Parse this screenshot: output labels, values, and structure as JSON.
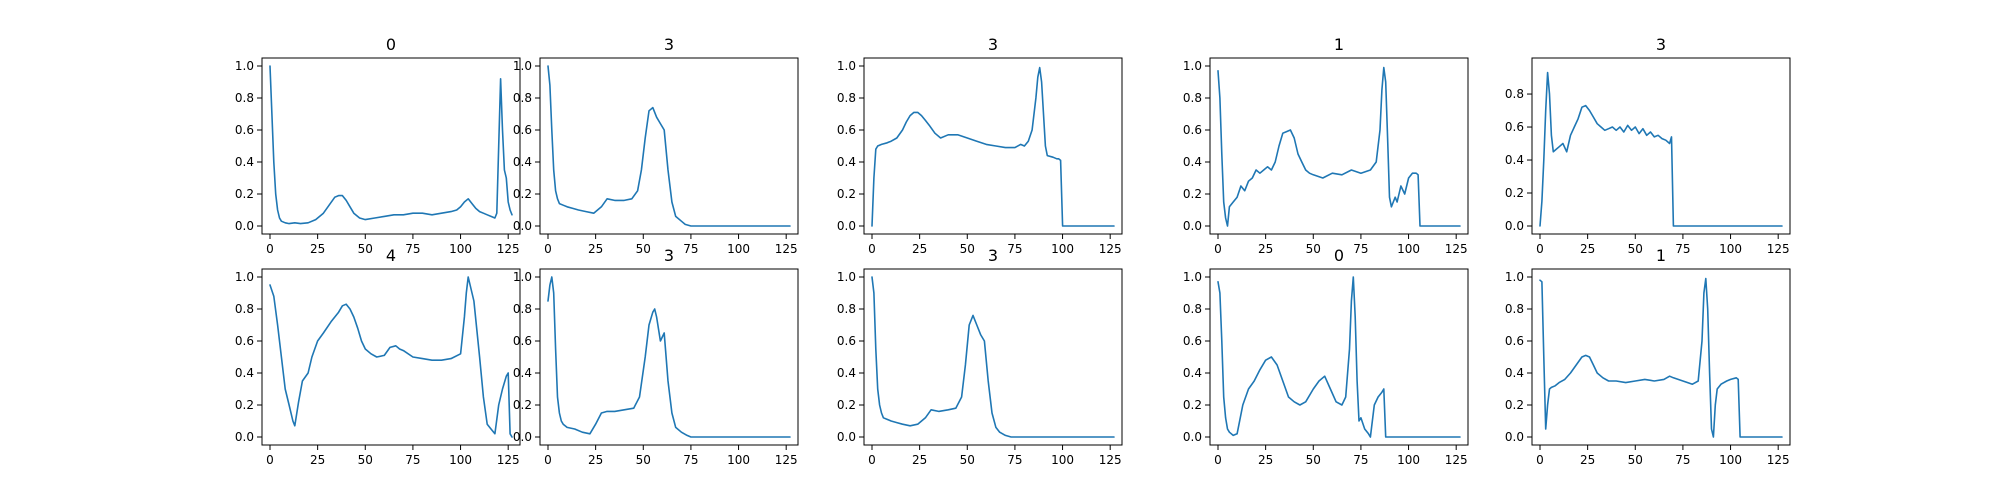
{
  "line_color": "#1f77b4",
  "chart_data": [
    {
      "type": "line",
      "title": "0",
      "xlim": [
        0,
        127
      ],
      "ylim": [
        0,
        1
      ],
      "xticks": [
        0,
        25,
        50,
        75,
        100,
        125
      ],
      "yticks": [
        "0.0",
        "0.2",
        "0.4",
        "0.6",
        "0.8",
        "1.0"
      ],
      "x": [
        0,
        1,
        2,
        3,
        4,
        5,
        6,
        8,
        10,
        13,
        16,
        20,
        24,
        28,
        31,
        34,
        36,
        38,
        40,
        42,
        44,
        47,
        50,
        55,
        60,
        65,
        70,
        75,
        80,
        85,
        90,
        95,
        98,
        100,
        102,
        104,
        106,
        108,
        110,
        112,
        114,
        116,
        118,
        119,
        120,
        121,
        122,
        123,
        124,
        125,
        126,
        127
      ],
      "y": [
        1.0,
        0.7,
        0.4,
        0.2,
        0.1,
        0.05,
        0.03,
        0.02,
        0.015,
        0.02,
        0.015,
        0.02,
        0.04,
        0.08,
        0.13,
        0.18,
        0.19,
        0.19,
        0.16,
        0.12,
        0.08,
        0.05,
        0.04,
        0.05,
        0.06,
        0.07,
        0.07,
        0.08,
        0.08,
        0.07,
        0.08,
        0.09,
        0.1,
        0.12,
        0.15,
        0.17,
        0.14,
        0.11,
        0.09,
        0.08,
        0.07,
        0.06,
        0.05,
        0.08,
        0.5,
        0.92,
        0.6,
        0.35,
        0.3,
        0.15,
        0.1,
        0.07
      ]
    },
    {
      "type": "line",
      "title": "3",
      "xlim": [
        0,
        127
      ],
      "ylim": [
        0,
        1
      ],
      "xticks": [
        0,
        25,
        50,
        75,
        100,
        125
      ],
      "yticks": [
        "0.0",
        "0.2",
        "0.4",
        "0.6",
        "0.8",
        "1.0"
      ],
      "x": [
        0,
        1,
        2,
        3,
        4,
        5,
        6,
        8,
        10,
        13,
        16,
        20,
        24,
        28,
        31,
        35,
        40,
        44,
        47,
        49,
        51,
        53,
        55,
        57,
        59,
        61,
        63,
        65,
        67,
        70,
        72,
        75,
        80,
        90,
        100,
        110,
        120,
        127
      ],
      "y": [
        1.0,
        0.88,
        0.6,
        0.35,
        0.22,
        0.17,
        0.14,
        0.13,
        0.12,
        0.11,
        0.1,
        0.09,
        0.08,
        0.12,
        0.17,
        0.16,
        0.16,
        0.17,
        0.22,
        0.35,
        0.55,
        0.72,
        0.74,
        0.68,
        0.64,
        0.6,
        0.35,
        0.15,
        0.06,
        0.03,
        0.01,
        0.0,
        0.0,
        0.0,
        0.0,
        0.0,
        0.0,
        0.0
      ]
    },
    {
      "type": "line",
      "title": "3",
      "xlim": [
        0,
        127
      ],
      "ylim": [
        0,
        1
      ],
      "xticks": [
        0,
        25,
        50,
        75,
        100,
        125
      ],
      "yticks": [
        "0.0",
        "0.2",
        "0.4",
        "0.6",
        "0.8",
        "1.0"
      ],
      "x": [
        0,
        1,
        2,
        3,
        5,
        8,
        10,
        13,
        16,
        18,
        20,
        22,
        24,
        26,
        28,
        30,
        33,
        36,
        40,
        45,
        50,
        55,
        60,
        65,
        70,
        75,
        78,
        80,
        82,
        84,
        86,
        87,
        88,
        89,
        90,
        91,
        92,
        95,
        97,
        98,
        99,
        100,
        105,
        110,
        115,
        120,
        127
      ],
      "y": [
        0.0,
        0.3,
        0.48,
        0.5,
        0.51,
        0.52,
        0.53,
        0.55,
        0.6,
        0.65,
        0.69,
        0.71,
        0.71,
        0.69,
        0.66,
        0.63,
        0.58,
        0.55,
        0.57,
        0.57,
        0.55,
        0.53,
        0.51,
        0.5,
        0.49,
        0.49,
        0.51,
        0.5,
        0.53,
        0.6,
        0.8,
        0.93,
        0.99,
        0.9,
        0.7,
        0.5,
        0.44,
        0.43,
        0.42,
        0.42,
        0.41,
        0.0,
        0.0,
        0.0,
        0.0,
        0.0,
        0.0
      ]
    },
    {
      "type": "line",
      "title": "1",
      "xlim": [
        0,
        127
      ],
      "ylim": [
        0,
        1
      ],
      "xticks": [
        0,
        25,
        50,
        75,
        100,
        125
      ],
      "yticks": [
        "0.0",
        "0.2",
        "0.4",
        "0.6",
        "0.8",
        "1.0"
      ],
      "x": [
        0,
        1,
        2,
        3,
        4,
        5,
        6,
        8,
        10,
        12,
        14,
        16,
        18,
        20,
        22,
        24,
        26,
        28,
        30,
        32,
        34,
        36,
        38,
        40,
        42,
        44,
        46,
        48,
        50,
        55,
        60,
        65,
        70,
        75,
        80,
        83,
        85,
        86,
        87,
        88,
        89,
        90,
        91,
        92,
        93,
        94,
        96,
        98,
        100,
        102,
        104,
        105,
        106,
        110,
        115,
        120,
        127
      ],
      "y": [
        0.97,
        0.8,
        0.45,
        0.15,
        0.05,
        0.0,
        0.12,
        0.15,
        0.18,
        0.25,
        0.22,
        0.28,
        0.3,
        0.35,
        0.33,
        0.35,
        0.37,
        0.35,
        0.4,
        0.5,
        0.58,
        0.59,
        0.6,
        0.55,
        0.45,
        0.4,
        0.35,
        0.33,
        0.32,
        0.3,
        0.33,
        0.32,
        0.35,
        0.33,
        0.35,
        0.4,
        0.6,
        0.85,
        0.99,
        0.9,
        0.55,
        0.18,
        0.12,
        0.15,
        0.18,
        0.15,
        0.25,
        0.2,
        0.3,
        0.33,
        0.33,
        0.32,
        0.0,
        0.0,
        0.0,
        0.0,
        0.0
      ]
    },
    {
      "type": "line",
      "title": "3",
      "xlim": [
        0,
        127
      ],
      "ylim": [
        0,
        0.97
      ],
      "xticks": [
        0,
        25,
        50,
        75,
        100,
        125
      ],
      "yticks": [
        "0.0",
        "0.2",
        "0.4",
        "0.6",
        "0.8"
      ],
      "x": [
        0,
        1,
        2,
        3,
        4,
        5,
        6,
        7,
        8,
        10,
        12,
        14,
        16,
        18,
        20,
        22,
        24,
        26,
        28,
        30,
        32,
        34,
        36,
        38,
        40,
        42,
        44,
        46,
        48,
        50,
        52,
        54,
        56,
        58,
        60,
        62,
        64,
        66,
        68,
        69,
        70,
        75,
        80,
        90,
        100,
        110,
        120,
        127
      ],
      "y": [
        0.0,
        0.15,
        0.4,
        0.7,
        0.93,
        0.8,
        0.55,
        0.45,
        0.46,
        0.48,
        0.5,
        0.45,
        0.55,
        0.6,
        0.65,
        0.72,
        0.73,
        0.7,
        0.66,
        0.62,
        0.6,
        0.58,
        0.59,
        0.6,
        0.58,
        0.6,
        0.57,
        0.61,
        0.58,
        0.6,
        0.56,
        0.59,
        0.55,
        0.57,
        0.54,
        0.55,
        0.53,
        0.52,
        0.5,
        0.54,
        0.0,
        0.0,
        0.0,
        0.0,
        0.0,
        0.0,
        0.0,
        0.0
      ]
    },
    {
      "type": "line",
      "title": "4",
      "xlim": [
        0,
        127
      ],
      "ylim": [
        0,
        1
      ],
      "xticks": [
        0,
        25,
        50,
        75,
        100,
        125
      ],
      "yticks": [
        "0.0",
        "0.2",
        "0.4",
        "0.6",
        "0.8",
        "1.0"
      ],
      "x": [
        0,
        2,
        4,
        6,
        8,
        10,
        12,
        13,
        15,
        17,
        20,
        22,
        25,
        28,
        32,
        36,
        38,
        40,
        42,
        44,
        46,
        48,
        50,
        53,
        56,
        60,
        63,
        66,
        68,
        70,
        75,
        80,
        85,
        90,
        95,
        100,
        102,
        103,
        104,
        105,
        107,
        110,
        112,
        114,
        116,
        118,
        120,
        122,
        124,
        125,
        126,
        127
      ],
      "y": [
        0.95,
        0.88,
        0.7,
        0.5,
        0.3,
        0.2,
        0.1,
        0.07,
        0.22,
        0.35,
        0.4,
        0.5,
        0.6,
        0.65,
        0.72,
        0.78,
        0.82,
        0.83,
        0.8,
        0.75,
        0.68,
        0.6,
        0.55,
        0.52,
        0.5,
        0.51,
        0.56,
        0.57,
        0.55,
        0.54,
        0.5,
        0.49,
        0.48,
        0.48,
        0.49,
        0.52,
        0.75,
        0.9,
        1.0,
        0.95,
        0.85,
        0.5,
        0.25,
        0.08,
        0.05,
        0.02,
        0.2,
        0.3,
        0.38,
        0.4,
        0.02,
        0.0
      ]
    },
    {
      "type": "line",
      "title": "3",
      "xlim": [
        0,
        127
      ],
      "ylim": [
        0,
        1
      ],
      "xticks": [
        0,
        25,
        50,
        75,
        100,
        125
      ],
      "yticks": [
        "0.0",
        "0.2",
        "0.4",
        "0.6",
        "0.8",
        "1.0"
      ],
      "x": [
        0,
        1,
        2,
        3,
        4,
        5,
        6,
        7,
        8,
        10,
        14,
        18,
        22,
        25,
        28,
        31,
        35,
        40,
        45,
        48,
        51,
        53,
        55,
        56,
        57,
        59,
        61,
        63,
        65,
        67,
        70,
        73,
        75,
        80,
        90,
        100,
        110,
        120,
        127
      ],
      "y": [
        0.85,
        0.95,
        1.0,
        0.9,
        0.55,
        0.25,
        0.15,
        0.1,
        0.08,
        0.06,
        0.05,
        0.03,
        0.02,
        0.08,
        0.15,
        0.16,
        0.16,
        0.17,
        0.18,
        0.25,
        0.5,
        0.7,
        0.78,
        0.8,
        0.75,
        0.6,
        0.65,
        0.35,
        0.15,
        0.06,
        0.03,
        0.01,
        0.0,
        0.0,
        0.0,
        0.0,
        0.0,
        0.0,
        0.0
      ]
    },
    {
      "type": "line",
      "title": "3",
      "xlim": [
        0,
        127
      ],
      "ylim": [
        0,
        1
      ],
      "xticks": [
        0,
        25,
        50,
        75,
        100,
        125
      ],
      "yticks": [
        "0.0",
        "0.2",
        "0.4",
        "0.6",
        "0.8",
        "1.0"
      ],
      "x": [
        0,
        1,
        2,
        3,
        4,
        5,
        6,
        8,
        10,
        13,
        16,
        20,
        24,
        28,
        31,
        35,
        40,
        44,
        47,
        49,
        51,
        53,
        55,
        57,
        59,
        61,
        63,
        65,
        67,
        70,
        73,
        75,
        80,
        90,
        100,
        110,
        120,
        127
      ],
      "y": [
        1.0,
        0.9,
        0.55,
        0.3,
        0.2,
        0.15,
        0.12,
        0.11,
        0.1,
        0.09,
        0.08,
        0.07,
        0.08,
        0.12,
        0.17,
        0.16,
        0.17,
        0.18,
        0.25,
        0.45,
        0.7,
        0.76,
        0.7,
        0.64,
        0.6,
        0.35,
        0.15,
        0.06,
        0.03,
        0.01,
        0.0,
        0.0,
        0.0,
        0.0,
        0.0,
        0.0,
        0.0,
        0.0
      ]
    },
    {
      "type": "line",
      "title": "0",
      "xlim": [
        0,
        127
      ],
      "ylim": [
        0,
        1
      ],
      "xticks": [
        0,
        25,
        50,
        75,
        100,
        125
      ],
      "yticks": [
        "0.0",
        "0.2",
        "0.4",
        "0.6",
        "0.8",
        "1.0"
      ],
      "x": [
        0,
        1,
        2,
        3,
        4,
        5,
        6,
        8,
        10,
        13,
        16,
        19,
        22,
        25,
        28,
        31,
        34,
        37,
        40,
        43,
        46,
        50,
        53,
        56,
        59,
        62,
        65,
        67,
        69,
        70,
        71,
        72,
        73,
        74,
        75,
        77,
        79,
        80,
        82,
        84,
        86,
        87,
        88,
        90,
        95,
        100,
        110,
        120,
        127
      ],
      "y": [
        0.97,
        0.9,
        0.6,
        0.25,
        0.12,
        0.05,
        0.03,
        0.01,
        0.02,
        0.2,
        0.3,
        0.35,
        0.42,
        0.48,
        0.5,
        0.45,
        0.35,
        0.25,
        0.22,
        0.2,
        0.22,
        0.3,
        0.35,
        0.38,
        0.3,
        0.22,
        0.2,
        0.25,
        0.55,
        0.85,
        1.0,
        0.75,
        0.35,
        0.1,
        0.12,
        0.05,
        0.02,
        0.0,
        0.2,
        0.25,
        0.28,
        0.3,
        0.0,
        0.0,
        0.0,
        0.0,
        0.0,
        0.0,
        0.0
      ]
    },
    {
      "type": "line",
      "title": "1",
      "xlim": [
        0,
        127
      ],
      "ylim": [
        0,
        1
      ],
      "xticks": [
        0,
        25,
        50,
        75,
        100,
        125
      ],
      "yticks": [
        "0.0",
        "0.2",
        "0.4",
        "0.6",
        "0.8",
        "1.0"
      ],
      "x": [
        0,
        1,
        2,
        3,
        4,
        5,
        6,
        8,
        10,
        13,
        16,
        19,
        22,
        24,
        26,
        28,
        30,
        33,
        36,
        40,
        45,
        50,
        55,
        60,
        65,
        68,
        70,
        75,
        80,
        83,
        85,
        86,
        87,
        88,
        89,
        90,
        91,
        92,
        93,
        95,
        98,
        100,
        103,
        104,
        105,
        106,
        110,
        115,
        120,
        127
      ],
      "y": [
        0.98,
        0.97,
        0.5,
        0.05,
        0.2,
        0.3,
        0.31,
        0.32,
        0.34,
        0.36,
        0.4,
        0.45,
        0.5,
        0.51,
        0.5,
        0.45,
        0.4,
        0.37,
        0.35,
        0.35,
        0.34,
        0.35,
        0.36,
        0.35,
        0.36,
        0.38,
        0.37,
        0.35,
        0.33,
        0.35,
        0.6,
        0.9,
        0.99,
        0.8,
        0.4,
        0.05,
        0.0,
        0.2,
        0.3,
        0.33,
        0.35,
        0.36,
        0.37,
        0.36,
        0.0,
        0.0,
        0.0,
        0.0,
        0.0,
        0.0
      ]
    }
  ]
}
